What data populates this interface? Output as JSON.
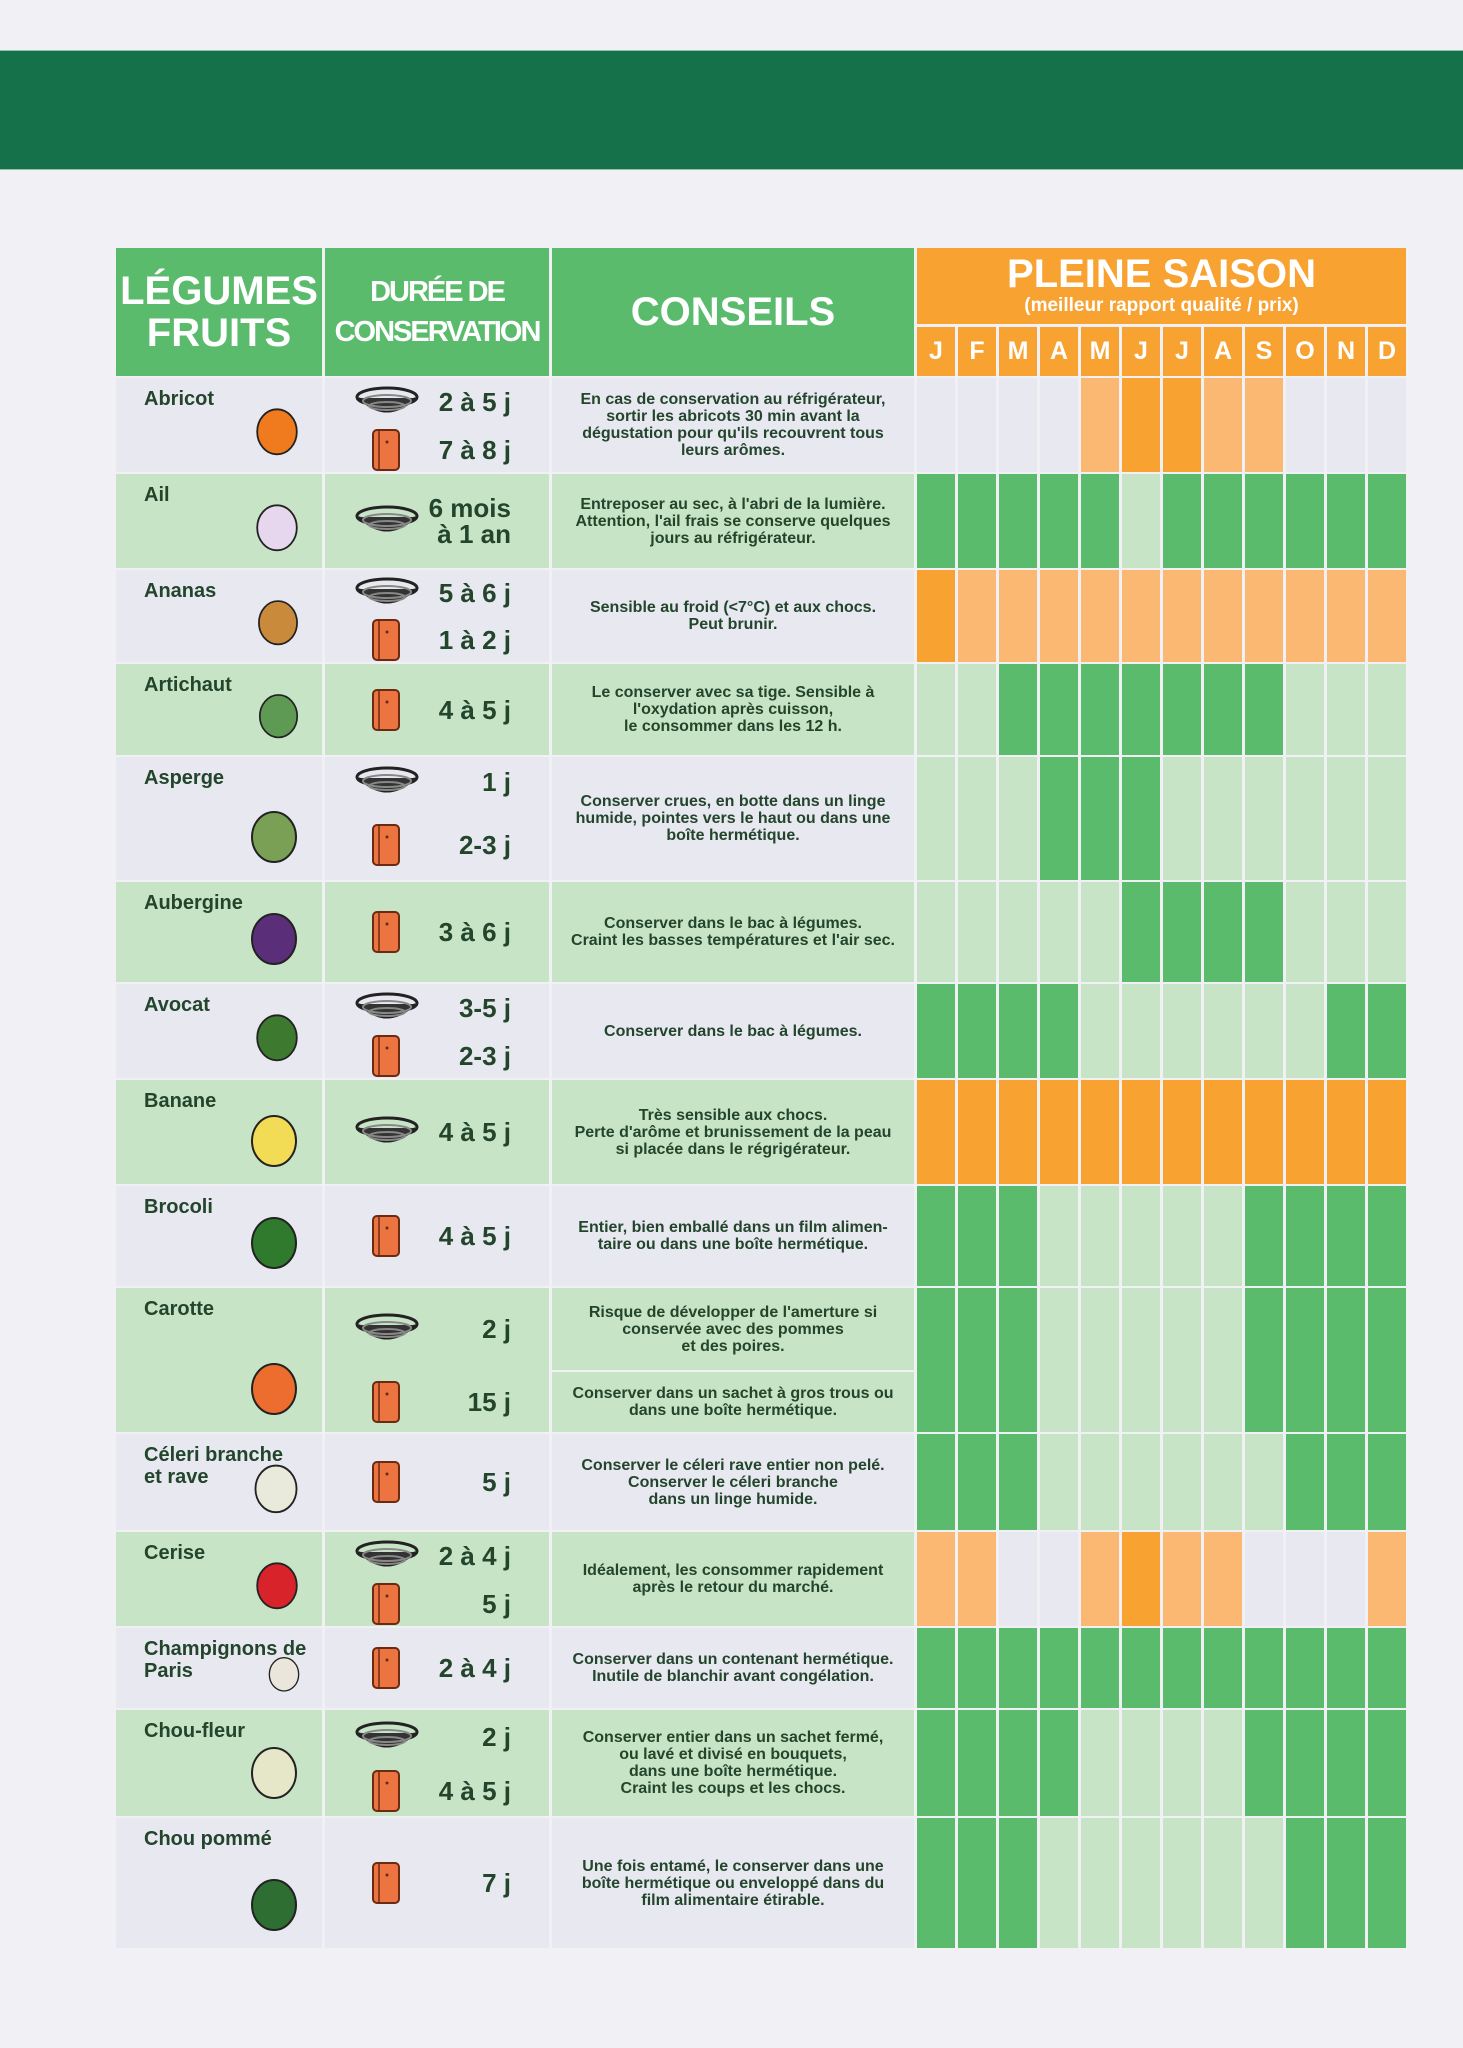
{
  "header": {
    "col_produce": "LÉGUMES\nFRUITS",
    "col_produce_l1": "LÉGUMES",
    "col_produce_l2": "FRUITS",
    "col_duration_l1": "DURÉE DE",
    "col_duration_l2": "CONSERVATION",
    "col_tips": "CONSEILS",
    "season_title": "PLEINE SAISON",
    "season_subtitle": "(meilleur rapport qualité / prix)",
    "months": [
      "J",
      "F",
      "M",
      "A",
      "M",
      "J",
      "J",
      "A",
      "S",
      "O",
      "N",
      "D"
    ]
  },
  "legend": {
    "storage_icons": {
      "basket": "fruit-basket-icon",
      "fridge": "fridge-icon"
    },
    "colors": {
      "banner": "#15714a",
      "header_green": "#5bbb6d",
      "header_orange": "#f8a232",
      "veg_peak": "#5bbb6d",
      "veg_mid": "#c8e4c6",
      "fruit_peak": "#f8a232",
      "fruit_mid": "#fbb873",
      "off": "#e8e8f0",
      "text": "#23452c"
    }
  },
  "rows": [
    {
      "name": "Abricot",
      "icon": "apricot-icon",
      "durations": [
        {
          "storage": "basket",
          "value": "2 à 5 j"
        },
        {
          "storage": "fridge",
          "value": "7 à 8 j"
        }
      ],
      "tip": "En cas de conservation au réfrigérateur,\nsortir les abricots 30 min avant la\ndégustation pour qu'ils recouvrent tous\nleurs arômes.",
      "season": [
        "off",
        "off",
        "off",
        "off",
        "mid-o",
        "peak-o",
        "peak-o",
        "mid-o",
        "mid-o",
        "off",
        "off",
        "off"
      ]
    },
    {
      "name": "Ail",
      "icon": "garlic-icon",
      "durations": [
        {
          "storage": "basket",
          "value": "6 mois\nà 1 an"
        }
      ],
      "tip": "Entreposer au sec, à l'abri de la lumière.\nAttention, l'ail frais se conserve quelques\njours au réfrigérateur.",
      "season": [
        "peak-g",
        "peak-g",
        "peak-g",
        "peak-g",
        "peak-g",
        "mid-g",
        "peak-g",
        "peak-g",
        "peak-g",
        "peak-g",
        "peak-g",
        "peak-g"
      ]
    },
    {
      "name": "Ananas",
      "icon": "pineapple-icon",
      "durations": [
        {
          "storage": "basket",
          "value": "5 à 6 j"
        },
        {
          "storage": "fridge",
          "value": "1 à 2 j"
        }
      ],
      "tip": "Sensible au froid (<7°C) et aux chocs.\nPeut brunir.",
      "season": [
        "peak-o",
        "mid-o",
        "mid-o",
        "mid-o",
        "mid-o",
        "mid-o",
        "mid-o",
        "mid-o",
        "mid-o",
        "mid-o",
        "mid-o",
        "mid-o"
      ]
    },
    {
      "name": "Artichaut",
      "icon": "artichoke-icon",
      "durations": [
        {
          "storage": "fridge",
          "value": "4 à  5 j"
        }
      ],
      "tip": "Le conserver avec sa tige. Sensible à\nl'oxydation après cuisson,\nle consommer dans les 12 h.",
      "season": [
        "mid-g",
        "mid-g",
        "peak-g",
        "peak-g",
        "peak-g",
        "peak-g",
        "peak-g",
        "peak-g",
        "peak-g",
        "mid-g",
        "mid-g",
        "mid-g"
      ]
    },
    {
      "name": "Asperge",
      "icon": "asparagus-icon",
      "durations": [
        {
          "storage": "basket",
          "value": "1 j"
        },
        {
          "storage": "fridge",
          "value": "2-3 j"
        }
      ],
      "tip": "Conserver crues,  en botte dans un linge\nhumide, pointes vers le haut ou dans une\nboîte hermétique.",
      "season": [
        "mid-g",
        "mid-g",
        "mid-g",
        "peak-g",
        "peak-g",
        "peak-g",
        "mid-g",
        "mid-g",
        "mid-g",
        "mid-g",
        "mid-g",
        "mid-g"
      ]
    },
    {
      "name": "Aubergine",
      "icon": "eggplant-icon",
      "durations": [
        {
          "storage": "fridge",
          "value": "3 à 6 j"
        }
      ],
      "tip": "Conserver dans le bac à légumes.\nCraint les basses températures et l'air sec.",
      "season": [
        "mid-g",
        "mid-g",
        "mid-g",
        "mid-g",
        "mid-g",
        "peak-g",
        "peak-g",
        "peak-g",
        "peak-g",
        "mid-g",
        "mid-g",
        "mid-g"
      ]
    },
    {
      "name": "Avocat",
      "icon": "avocado-icon",
      "durations": [
        {
          "storage": "basket",
          "value": "3-5 j"
        },
        {
          "storage": "fridge",
          "value": "2-3 j"
        }
      ],
      "tip": "Conserver dans le bac à légumes.",
      "season": [
        "peak-g",
        "peak-g",
        "peak-g",
        "peak-g",
        "mid-g",
        "mid-g",
        "mid-g",
        "mid-g",
        "mid-g",
        "mid-g",
        "peak-g",
        "peak-g"
      ]
    },
    {
      "name": "Banane",
      "icon": "banana-icon",
      "durations": [
        {
          "storage": "basket",
          "value": "4 à 5 j"
        }
      ],
      "tip": "Très sensible aux chocs.\nPerte d'arôme et brunissement de la peau\nsi placée dans le régrigérateur.",
      "season": [
        "peak-o",
        "peak-o",
        "peak-o",
        "peak-o",
        "peak-o",
        "peak-o",
        "peak-o",
        "peak-o",
        "peak-o",
        "peak-o",
        "peak-o",
        "peak-o"
      ]
    },
    {
      "name": "Brocoli",
      "icon": "broccoli-icon",
      "durations": [
        {
          "storage": "fridge",
          "value": "4 à 5 j"
        }
      ],
      "tip": "Entier, bien emballé dans un film alimen-\ntaire ou dans une boîte hermétique.",
      "season": [
        "peak-g",
        "peak-g",
        "peak-g",
        "mid-g",
        "mid-g",
        "mid-g",
        "mid-g",
        "mid-g",
        "peak-g",
        "peak-g",
        "peak-g",
        "peak-g"
      ]
    },
    {
      "name": "Carotte",
      "icon": "carrot-icon",
      "durations": [
        {
          "storage": "basket",
          "value": "2 j",
          "tip": "Risque de développer de l'amerture si\nconservée avec des pommes\net des poires."
        },
        {
          "storage": "fridge",
          "value": "15 j",
          "tip": "Conserver dans un sachet à gros trous ou\ndans une boîte hermétique."
        }
      ],
      "tip": "",
      "season": [
        "peak-g",
        "peak-g",
        "peak-g",
        "mid-g",
        "mid-g",
        "mid-g",
        "mid-g",
        "mid-g",
        "peak-g",
        "peak-g",
        "peak-g",
        "peak-g"
      ]
    },
    {
      "name": "Céleri branche\net rave",
      "icon": "celery-icon",
      "durations": [
        {
          "storage": "fridge",
          "value": "5 j"
        }
      ],
      "tip": "Conserver le céleri rave entier non pelé.\nConserver le céleri branche\ndans un linge humide.",
      "season": [
        "peak-g",
        "peak-g",
        "peak-g",
        "mid-g",
        "mid-g",
        "mid-g",
        "mid-g",
        "mid-g",
        "mid-g",
        "peak-g",
        "peak-g",
        "peak-g"
      ]
    },
    {
      "name": "Cerise",
      "icon": "cherry-icon",
      "durations": [
        {
          "storage": "basket",
          "value": "2 à 4 j"
        },
        {
          "storage": "fridge",
          "value": "5 j"
        }
      ],
      "tip": "Idéalement,  les consommer rapidement\naprès le retour du marché.",
      "season": [
        "mid-o",
        "mid-o",
        "off",
        "off",
        "mid-o",
        "peak-o",
        "mid-o",
        "mid-o",
        "off",
        "off",
        "off",
        "mid-o"
      ]
    },
    {
      "name": "Champignons de\nParis",
      "icon": "mushroom-icon",
      "durations": [
        {
          "storage": "fridge",
          "value": "2 à 4 j"
        }
      ],
      "tip": "Conserver dans un contenant hermétique.\nInutile de blanchir avant congélation.",
      "season": [
        "peak-g",
        "peak-g",
        "peak-g",
        "peak-g",
        "peak-g",
        "peak-g",
        "peak-g",
        "peak-g",
        "peak-g",
        "peak-g",
        "peak-g",
        "peak-g"
      ]
    },
    {
      "name": "Chou-fleur",
      "icon": "cauliflower-icon",
      "durations": [
        {
          "storage": "basket",
          "value": "2 j"
        },
        {
          "storage": "fridge",
          "value": "4 à 5 j"
        }
      ],
      "tip": "Conserver entier dans un sachet fermé,\nou lavé et divisé en bouquets,\ndans une boîte hermétique.\nCraint les coups et les chocs.",
      "season": [
        "peak-g",
        "peak-g",
        "peak-g",
        "peak-g",
        "mid-g",
        "mid-g",
        "mid-g",
        "mid-g",
        "peak-g",
        "peak-g",
        "peak-g",
        "peak-g"
      ]
    },
    {
      "name": "Chou pommé",
      "icon": "cabbage-icon",
      "durations": [
        {
          "storage": "fridge",
          "value": "7 j"
        }
      ],
      "tip": "Une fois entamé, le conserver dans une\nboîte hermétique ou enveloppé dans du\nfilm alimentaire étirable.",
      "season": [
        "peak-g",
        "peak-g",
        "peak-g",
        "mid-g",
        "mid-g",
        "mid-g",
        "mid-g",
        "mid-g",
        "mid-g",
        "peak-g",
        "peak-g",
        "peak-g"
      ]
    }
  ]
}
